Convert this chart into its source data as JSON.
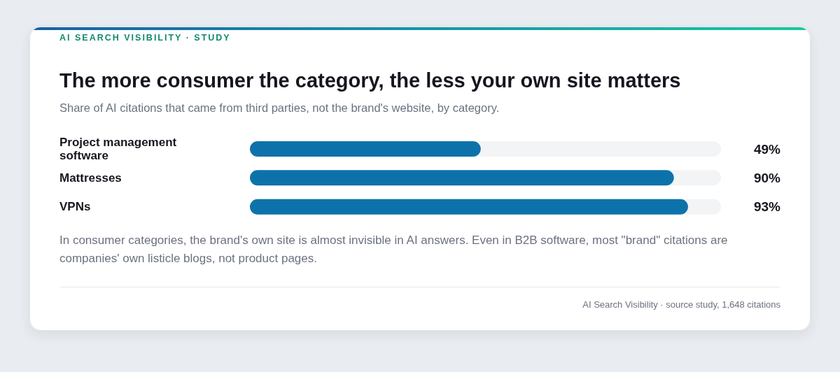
{
  "chart_data": {
    "type": "bar",
    "orientation": "horizontal",
    "title": "The more consumer the category, the less your own site matters",
    "subtitle": "Share of AI citations that came from third parties, not the brand's website, by category.",
    "annotations": [
      "AI SEARCH VISIBILITY · STUDY",
      "In consumer categories, the brand's own site is almost invisible in AI answers. Even in B2B software, most \"brand\" citations are companies' own listicle blogs, not product pages.",
      "AI Search Visibility · source study, 1,648 citations"
    ],
    "categories": [
      "Project management software",
      "Mattresses",
      "VPNs"
    ],
    "values": [
      49,
      90,
      93
    ],
    "value_labels": [
      "49%",
      "90%",
      "93%"
    ],
    "color": "#0e72aa",
    "xlim": [
      0,
      100
    ],
    "tick_labels": "y"
  }
}
